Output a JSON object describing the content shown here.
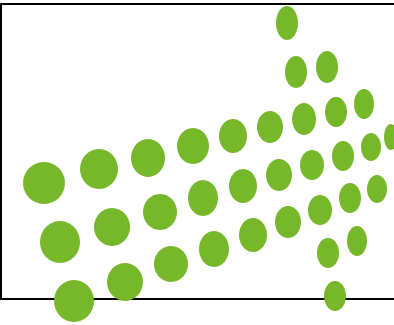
{
  "graphic": {
    "frame": {
      "stroke": "#000000"
    },
    "dots": {
      "fill": "#76b82a"
    }
  }
}
